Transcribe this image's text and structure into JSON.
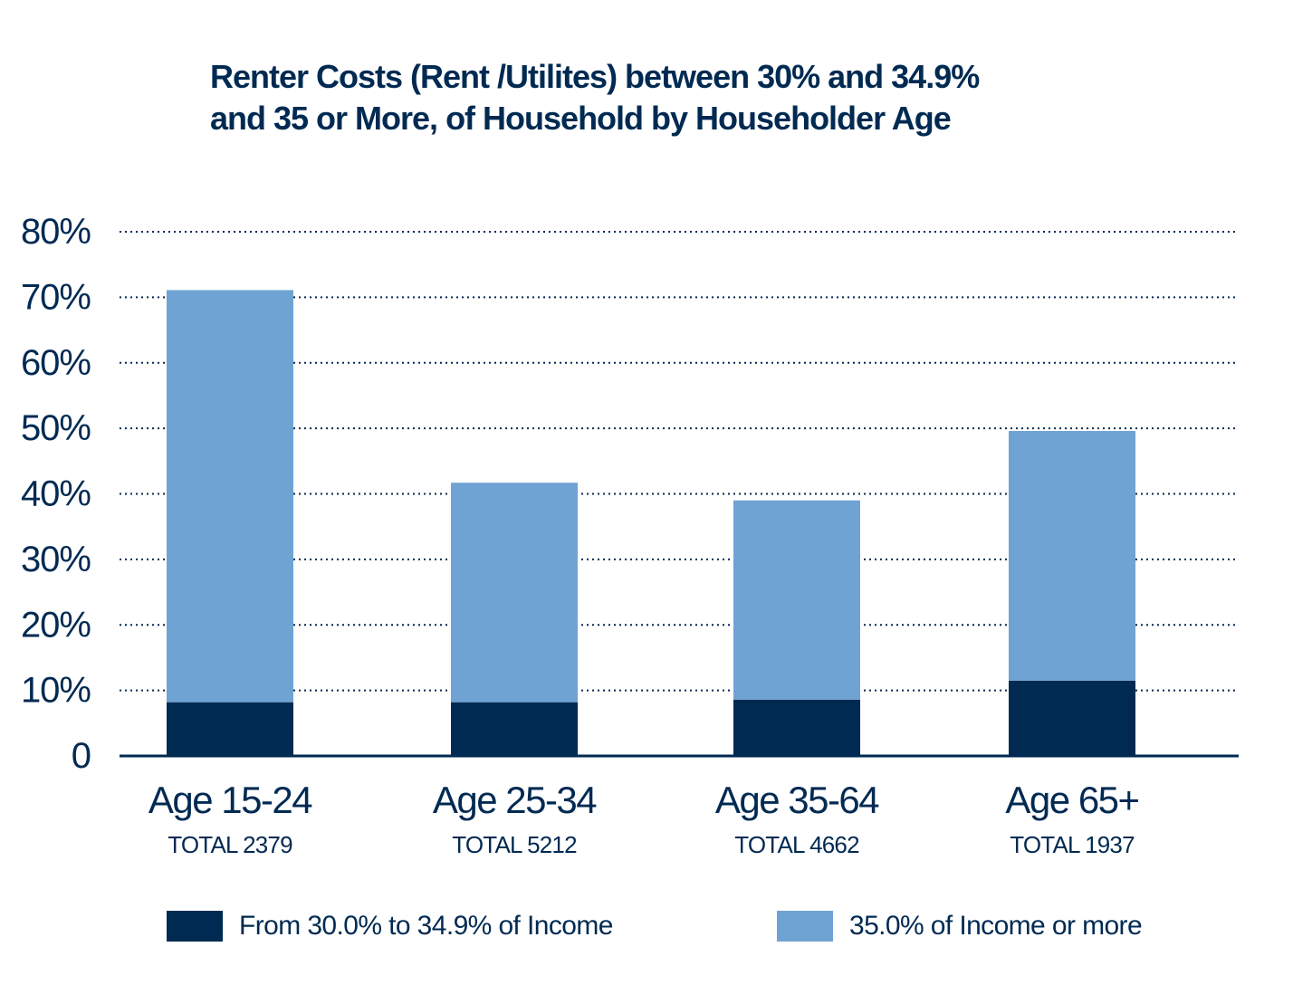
{
  "chart_data": {
    "type": "bar",
    "stacked": true,
    "title": [
      "Renter Costs (Rent /Utilites)  between 30% and 34.9%",
      "and 35 or More, of  Household by Householder Age"
    ],
    "categories": [
      "Age 15-24",
      "Age 25-34",
      "Age 35-64",
      "Age 65+"
    ],
    "category_subtitles": [
      "TOTAL 2379",
      "TOTAL 5212",
      "TOTAL 4662",
      "TOTAL 1937"
    ],
    "series": [
      {
        "name": "From 30.0% to 34.9% of Income",
        "color": "#002a52",
        "values": [
          8.2,
          8.2,
          8.6,
          11.5
        ]
      },
      {
        "name": "35.0% of Income or more",
        "color": "#6fa3d4",
        "values": [
          62.9,
          33.5,
          30.4,
          38.1
        ]
      }
    ],
    "ylim": [
      0,
      80
    ],
    "yticks": [
      0,
      10,
      20,
      30,
      40,
      50,
      60,
      70,
      80
    ],
    "ytick_labels": [
      "0",
      "10%",
      "20%",
      "30%",
      "40%",
      "50%",
      "60%",
      "70%",
      "80%"
    ],
    "grid": "dotted horizontal",
    "legend_position": "bottom"
  }
}
